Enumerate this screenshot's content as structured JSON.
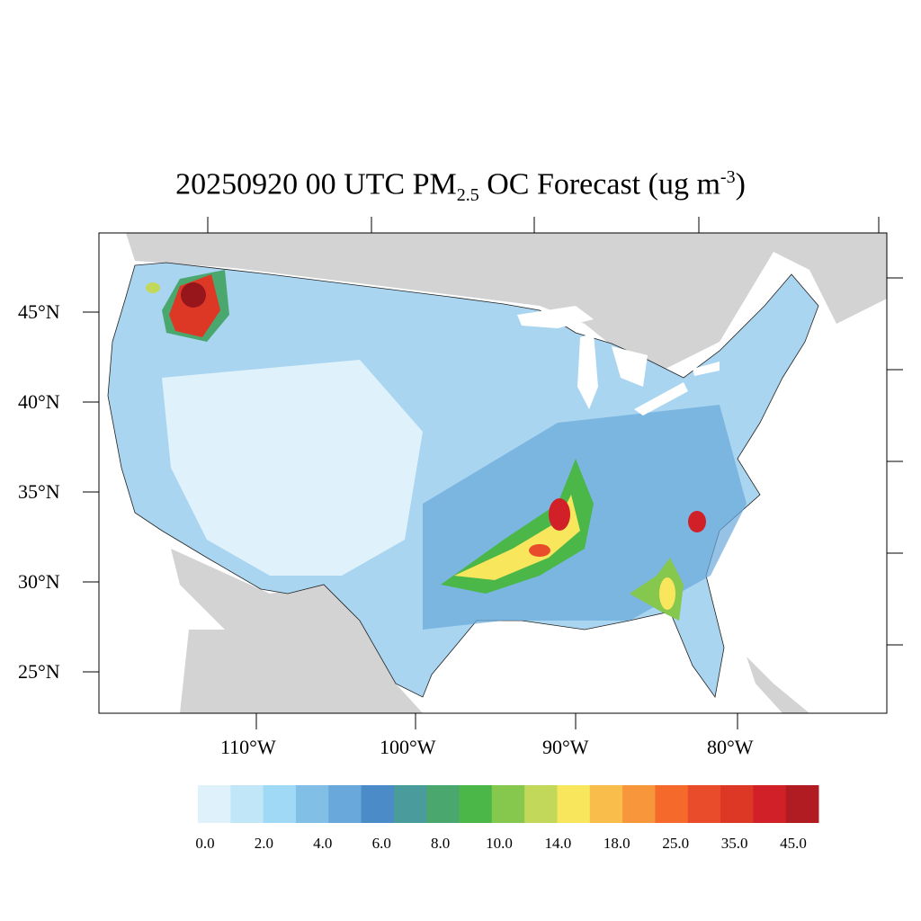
{
  "title": {
    "date": "20250920",
    "time": "00 UTC",
    "species": "PM",
    "subscript": "2.5",
    "rest": "OC Forecast (ug m",
    "superscript": "-3",
    "close": ")"
  },
  "map": {
    "land_color": "#d3d3d3",
    "water_color": "#ffffff",
    "region": "CONUS counties"
  },
  "lat_labels": [
    "45°N",
    "40°N",
    "35°N",
    "30°N",
    "25°N"
  ],
  "lon_labels": [
    "110°W",
    "100°W",
    "90°W",
    "80°W"
  ],
  "colorbar": {
    "colors": [
      "#dff2fb",
      "#c1e6f7",
      "#a0d9f5",
      "#82bfe6",
      "#68a8da",
      "#4a8bc8",
      "#4a9b9c",
      "#4aa86e",
      "#4bb748",
      "#86c74e",
      "#c2d85a",
      "#f8e65c",
      "#f8bd4a",
      "#f7963a",
      "#f56a2a",
      "#e84c2a",
      "#dd3826",
      "#d22028",
      "#b01c22",
      "#96161c"
    ],
    "labels": [
      "0.0",
      "2.0",
      "4.0",
      "6.0",
      "8.0",
      "10.0",
      "14.0",
      "18.0",
      "25.0",
      "35.0",
      "45.0"
    ]
  }
}
